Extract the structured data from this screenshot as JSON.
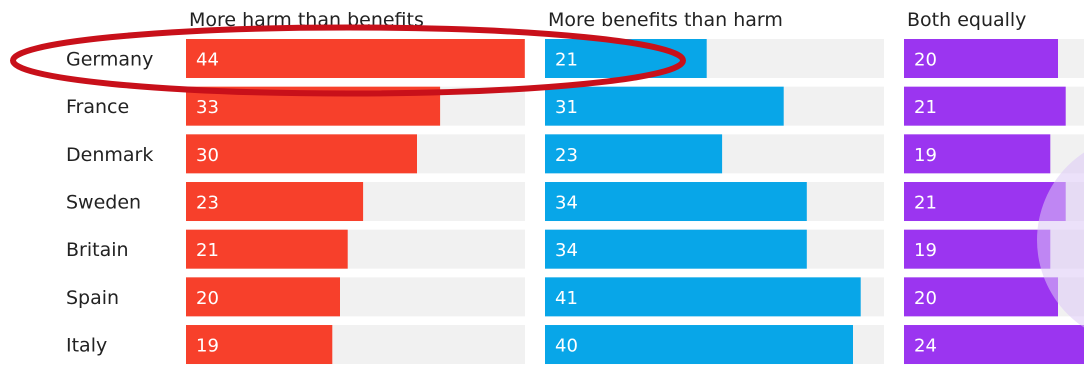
{
  "chart_data": {
    "type": "bar",
    "orientation": "horizontal",
    "categories": [
      "Germany",
      "France",
      "Denmark",
      "Sweden",
      "Britain",
      "Spain",
      "Italy"
    ],
    "series": [
      {
        "name": "More harm than benefits",
        "values": [
          44,
          33,
          30,
          23,
          21,
          20,
          19
        ],
        "color": "#f7402b"
      },
      {
        "name": "More benefits than harm",
        "values": [
          21,
          31,
          23,
          34,
          34,
          41,
          40
        ],
        "color": "#08a6e8"
      },
      {
        "name": "Both equally",
        "values": [
          20,
          21,
          19,
          21,
          19,
          20,
          24
        ],
        "color": "#9b35f0"
      }
    ],
    "xlim": [
      0,
      44
    ],
    "track_color": "#f1f1f1",
    "highlight": {
      "category": "Germany",
      "color": "#c8101a"
    },
    "grid": false
  }
}
